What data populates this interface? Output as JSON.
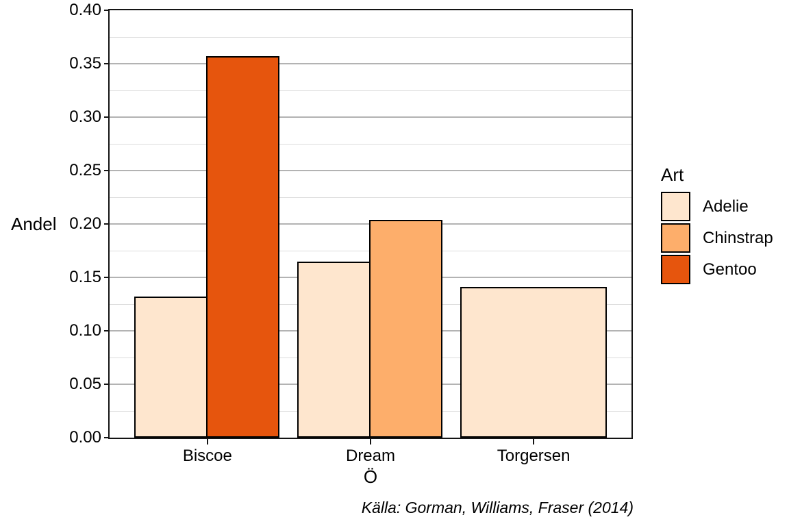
{
  "chart_data": {
    "type": "bar",
    "title": "",
    "xlabel": "Ö",
    "ylabel": "Andel",
    "caption": "Källa: Gorman, Williams, Fraser (2014)",
    "categories": [
      "Biscoe",
      "Dream",
      "Torgersen"
    ],
    "series": [
      {
        "name": "Adelie",
        "color": "#FEE6CE",
        "values": [
          0.132,
          0.165,
          0.141
        ]
      },
      {
        "name": "Chinstrap",
        "color": "#FDAE6B",
        "values": [
          null,
          0.204,
          null
        ]
      },
      {
        "name": "Gentoo",
        "color": "#E6550D",
        "values": [
          0.357,
          null,
          null
        ]
      }
    ],
    "ylim": [
      0,
      0.4
    ],
    "y_tick_values": [
      0.0,
      0.05,
      0.1,
      0.15,
      0.2,
      0.25,
      0.3,
      0.35,
      0.4
    ],
    "y_tick_labels": [
      "0.00",
      "0.05",
      "0.10",
      "0.15",
      "0.20",
      "0.25",
      "0.30",
      "0.35",
      "0.40"
    ],
    "y_minor_step": 0.025,
    "bar_outline_color": "#000000",
    "grid": "major-and-minor",
    "legend": {
      "title": "Art",
      "position": "right"
    }
  }
}
